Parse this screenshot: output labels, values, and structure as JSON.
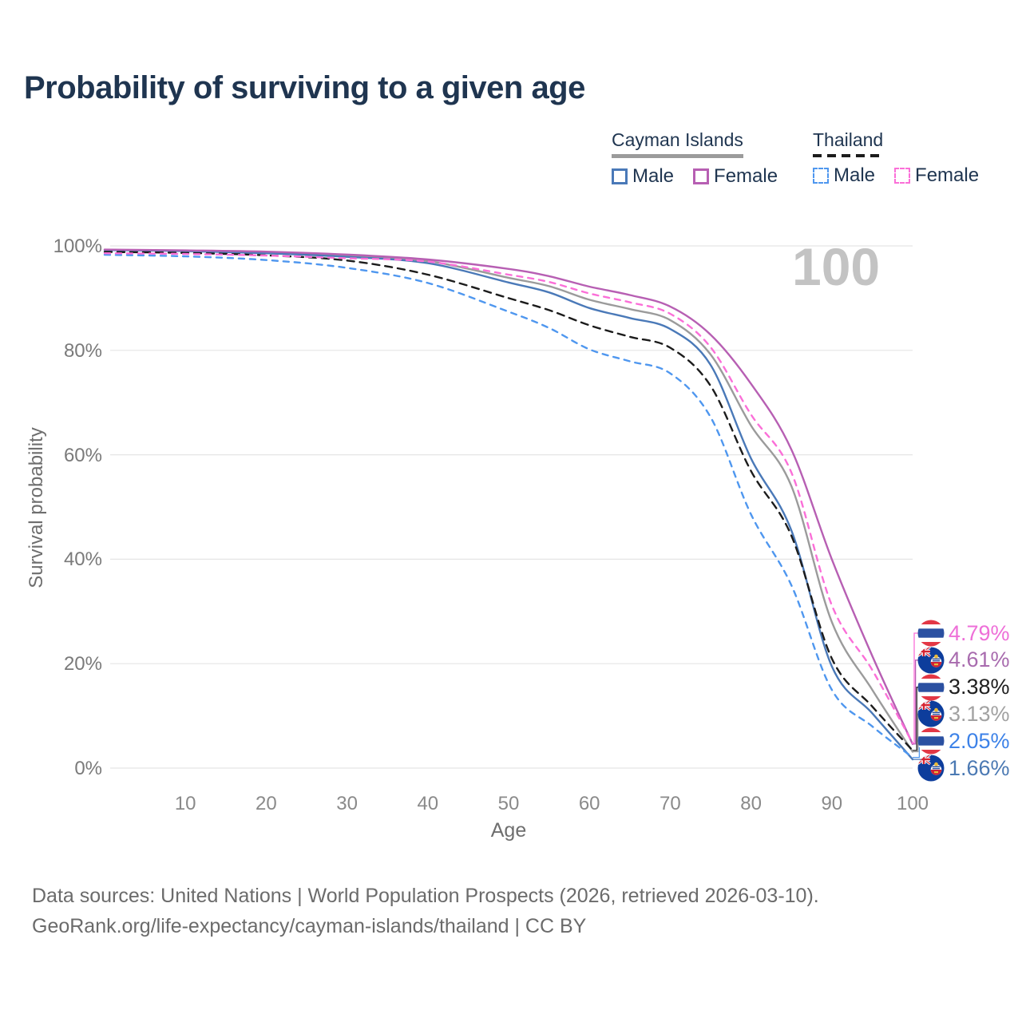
{
  "title": "Probability of surviving to a given age",
  "watermark": "100",
  "legend": {
    "cayman": {
      "label": "Cayman Islands",
      "male": "Male",
      "female": "Female"
    },
    "thailand": {
      "label": "Thailand",
      "male": "Male",
      "female": "Female"
    }
  },
  "chart_data": {
    "type": "line",
    "title": "Probability of surviving to a given age",
    "xlabel": "Age",
    "ylabel": "Survival probability",
    "xlim": [
      0,
      100
    ],
    "ylim": [
      0,
      100
    ],
    "grid": "horizontal",
    "legend_position": "top-right",
    "y_ticks": [
      {
        "value": 0,
        "label": "0%"
      },
      {
        "value": 20,
        "label": "20%"
      },
      {
        "value": 40,
        "label": "40%"
      },
      {
        "value": 60,
        "label": "60%"
      },
      {
        "value": 80,
        "label": "80%"
      },
      {
        "value": 100,
        "label": "100%"
      }
    ],
    "x_ticks": [
      {
        "value": 10,
        "label": "10"
      },
      {
        "value": 20,
        "label": "20"
      },
      {
        "value": 30,
        "label": "30"
      },
      {
        "value": 40,
        "label": "40"
      },
      {
        "value": 50,
        "label": "50"
      },
      {
        "value": 60,
        "label": "60"
      },
      {
        "value": 70,
        "label": "70"
      },
      {
        "value": 80,
        "label": "80"
      },
      {
        "value": 90,
        "label": "90"
      },
      {
        "value": 100,
        "label": "100"
      }
    ],
    "ages": [
      0,
      10,
      20,
      30,
      40,
      50,
      55,
      60,
      65,
      70,
      75,
      80,
      85,
      90,
      95,
      100
    ],
    "series": [
      {
        "id": "ci_o",
        "name": "Cayman Islands (both sexes)",
        "country": "Cayman Islands",
        "sex": "both",
        "style": "solid",
        "color": "#9b9b9b",
        "values": [
          99.25,
          99.05,
          98.75,
          98.15,
          97.1,
          93.9,
          92.3,
          89.7,
          87.9,
          85.8,
          79.2,
          65.6,
          54.0,
          28.0,
          15.0,
          3.13
        ],
        "end_value": "3.13%"
      },
      {
        "id": "ci_m",
        "name": "Cayman Islands Male",
        "country": "Cayman Islands",
        "sex": "male",
        "style": "solid",
        "color": "#4a79b8",
        "values": [
          99.2,
          99.0,
          98.6,
          97.9,
          96.7,
          93.0,
          91.1,
          88.1,
          86.2,
          84.1,
          77.2,
          59.3,
          45.5,
          19.5,
          10.5,
          1.66
        ],
        "end_value": "1.66%"
      },
      {
        "id": "ci_f",
        "name": "Cayman Islands Female",
        "country": "Cayman Islands",
        "sex": "female",
        "style": "solid",
        "color": "#b75fb3",
        "values": [
          99.3,
          99.15,
          98.9,
          98.35,
          97.4,
          95.6,
          94.2,
          92.2,
          90.6,
          88.4,
          83.0,
          73.6,
          61.0,
          40.0,
          21.5,
          4.61
        ],
        "end_value": "4.61%"
      },
      {
        "id": "th_o",
        "name": "Thailand (both sexes)",
        "country": "Thailand",
        "sex": "both",
        "style": "dashed",
        "color": "#1c1c1c",
        "values": [
          98.85,
          98.65,
          98.2,
          97.2,
          94.5,
          90.0,
          87.7,
          84.8,
          82.6,
          80.5,
          73.2,
          56.9,
          44.5,
          21.0,
          11.8,
          3.38
        ],
        "end_value": "3.38%"
      },
      {
        "id": "th_m",
        "name": "Thailand Male",
        "country": "Thailand",
        "sex": "male",
        "style": "dashed",
        "color": "#4f97ef",
        "values": [
          98.3,
          98.0,
          97.3,
          95.8,
          92.9,
          87.4,
          84.3,
          80.2,
          77.9,
          75.6,
          67.2,
          48.6,
          35.0,
          15.0,
          8.0,
          2.05
        ],
        "end_value": "2.05%"
      },
      {
        "id": "th_f",
        "name": "Thailand Female",
        "country": "Thailand",
        "sex": "female",
        "style": "dashed",
        "color": "#fb6fd8",
        "values": [
          98.6,
          98.45,
          98.15,
          97.65,
          97.0,
          94.5,
          93.1,
          90.9,
          89.2,
          87.0,
          80.6,
          67.7,
          56.6,
          31.2,
          18.8,
          4.79
        ],
        "end_value": "4.79%"
      }
    ],
    "end_labels": [
      {
        "series": "th_f",
        "flag": "thailand",
        "text": "4.79%",
        "color": "#ee6fd8"
      },
      {
        "series": "ci_f",
        "flag": "cayman-islands",
        "text": "4.61%",
        "color": "#a86bae"
      },
      {
        "series": "th_o",
        "flag": "thailand",
        "text": "3.38%",
        "color": "#1f1f1f"
      },
      {
        "series": "ci_o",
        "flag": "cayman-islands",
        "text": "3.13%",
        "color": "#a2a2a2"
      },
      {
        "series": "th_m",
        "flag": "thailand",
        "text": "2.05%",
        "color": "#3d82e8"
      },
      {
        "series": "ci_m",
        "flag": "cayman-islands",
        "text": "1.66%",
        "color": "#4b79b3"
      }
    ]
  },
  "footer": {
    "line1": "Data sources: United Nations | World Population Prospects (2026, retrieved 2026-03-10).",
    "line2": "GeoRank.org/life-expectancy/cayman-islands/thailand | CC BY"
  }
}
